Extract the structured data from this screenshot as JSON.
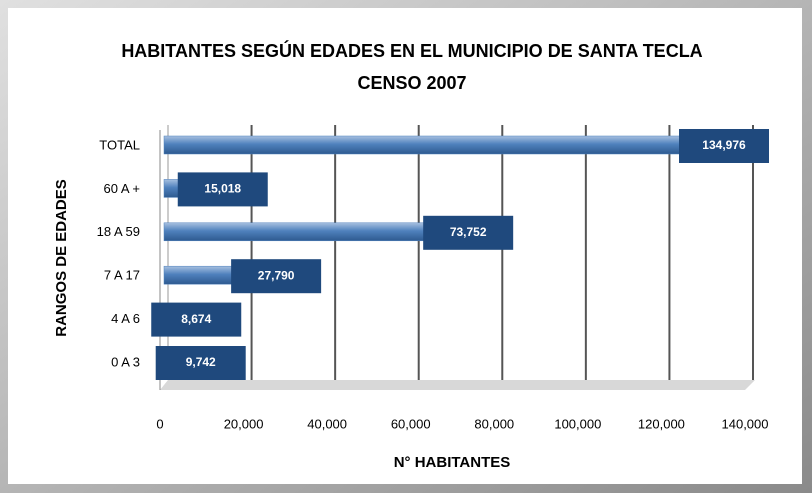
{
  "chart_data": {
    "type": "bar",
    "orientation": "horizontal",
    "title": "HABITANTES SEGÚN EDADES EN EL MUNICIPIO DE SANTA TECLA",
    "subtitle": "CENSO 2007",
    "xlabel": "N° HABITANTES",
    "ylabel": "RANGOS DE EDADES",
    "categories": [
      "TOTAL",
      "60 A +",
      "18 A 59",
      "7 A 17",
      "4 A 6",
      "0 A 3"
    ],
    "values": [
      134976,
      15018,
      73752,
      27790,
      8674,
      9742
    ],
    "value_labels": [
      "134,976",
      "15,018",
      "73,752",
      "27,790",
      "8,674",
      "9,742"
    ],
    "color": "#4f81bd",
    "label_color": "#1f497d",
    "xlim": [
      0,
      140000
    ],
    "xticks": [
      0,
      {
        "value": 20000,
        "label": "20,000"
      },
      {
        "value": 40000,
        "label": "40,000"
      },
      {
        "value": 60000,
        "label": "60,000"
      },
      {
        "value": 80000,
        "label": "80,000"
      },
      {
        "value": 100000,
        "label": "100,000"
      },
      {
        "value": 120000,
        "label": "120,000"
      },
      {
        "value": 140000,
        "label": "140,000"
      }
    ],
    "grid": true
  }
}
